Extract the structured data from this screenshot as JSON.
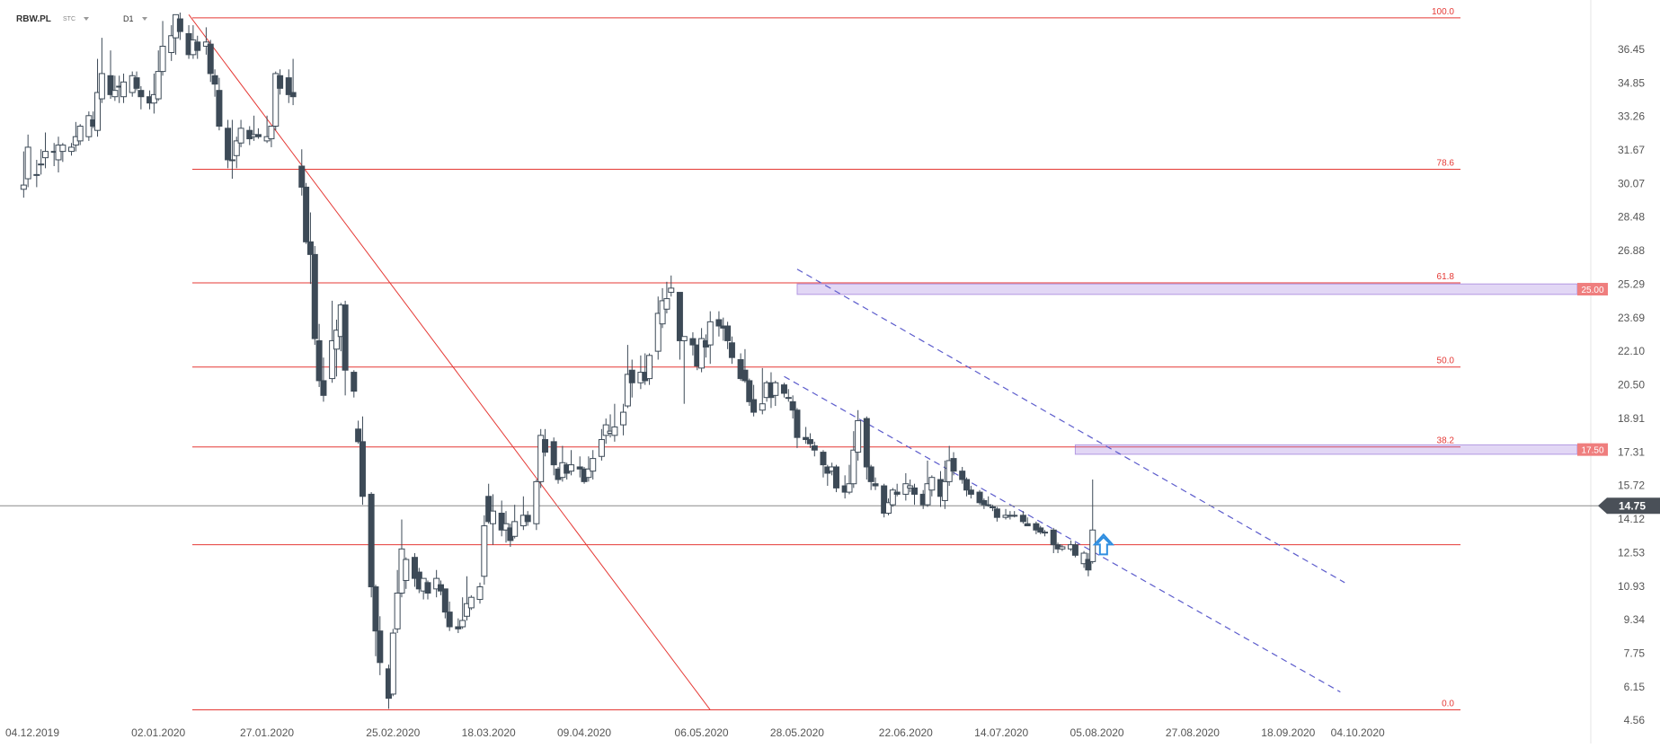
{
  "header": {
    "symbol": "RBW.PL",
    "exchange": "STC",
    "timeframe": "D1"
  },
  "chart_data": {
    "type": "candlestick",
    "title": "",
    "xlabel": "",
    "ylabel": "",
    "ylim": [
      4.56,
      38.5
    ],
    "y_ticks": [
      "36.45",
      "34.85",
      "33.26",
      "31.67",
      "30.07",
      "28.48",
      "26.88",
      "25.29",
      "23.69",
      "22.10",
      "20.50",
      "18.91",
      "17.31",
      "15.72",
      "14.12",
      "12.53",
      "10.93",
      "9.34",
      "7.75",
      "6.15",
      "4.56"
    ],
    "x_ticks": [
      {
        "label": "04.12.2019",
        "day": 0
      },
      {
        "label": "02.01.2020",
        "day": 29
      },
      {
        "label": "27.01.2020",
        "day": 54
      },
      {
        "label": "25.02.2020",
        "day": 83
      },
      {
        "label": "18.03.2020",
        "day": 105
      },
      {
        "label": "09.04.2020",
        "day": 127
      },
      {
        "label": "06.05.2020",
        "day": 154
      },
      {
        "label": "28.05.2020",
        "day": 176
      },
      {
        "label": "22.06.2020",
        "day": 201
      },
      {
        "label": "14.07.2020",
        "day": 223
      },
      {
        "label": "05.08.2020",
        "day": 245
      },
      {
        "label": "27.08.2020",
        "day": 267
      },
      {
        "label": "18.09.2020",
        "day": 289
      },
      {
        "label": "04.10.2020",
        "day": 305
      }
    ],
    "current_price": "14.75",
    "fib_levels": [
      {
        "label": "100.0",
        "value": 37.95
      },
      {
        "label": "78.6",
        "value": 30.75
      },
      {
        "label": "61.8",
        "value": 25.35
      },
      {
        "label": "50.0",
        "value": 21.35
      },
      {
        "label": "38.2",
        "value": 17.55
      },
      {
        "label": "",
        "value": 12.9
      },
      {
        "label": "0.0",
        "value": 5.05
      }
    ],
    "zones": [
      {
        "label": "25.00",
        "y_top": 25.3,
        "y_bottom": 24.8,
        "day_start": 176
      },
      {
        "label": "17.50",
        "y_top": 17.65,
        "y_bottom": 17.2,
        "day_start": 240
      }
    ],
    "trendline": {
      "d1": 36,
      "v1": 38.1,
      "d2": 156,
      "v2": 5.05
    },
    "channel": [
      {
        "d1": 176,
        "v1": 26.0,
        "d2": 302,
        "v2": 11.1
      },
      {
        "d1": 173,
        "v1": 20.9,
        "d2": 301,
        "v2": 5.9
      }
    ],
    "candles": [
      [
        -2,
        29.8,
        30.0,
        31.6,
        29.4
      ],
      [
        -1,
        30.3,
        31.8,
        32.4,
        29.9
      ],
      [
        1,
        30.5,
        30.5,
        31.2,
        29.9
      ],
      [
        2,
        31.0,
        31.0,
        31.7,
        30.5
      ],
      [
        3,
        31.3,
        31.6,
        32.5,
        30.8
      ],
      [
        5,
        31.6,
        31.6,
        32.0,
        30.9
      ],
      [
        6,
        31.2,
        31.9,
        32.3,
        30.6
      ],
      [
        7,
        31.6,
        31.9,
        32.0,
        31.1
      ],
      [
        9,
        31.6,
        31.8,
        32.0,
        31.4
      ],
      [
        10,
        31.9,
        32.3,
        33.0,
        31.6
      ],
      [
        11,
        32.1,
        32.8,
        32.9,
        31.9
      ],
      [
        13,
        32.3,
        33.3,
        33.5,
        32.1
      ],
      [
        14,
        33.1,
        32.8,
        33.5,
        32.7
      ],
      [
        15,
        32.6,
        34.4,
        36.0,
        32.3
      ],
      [
        16,
        34.1,
        35.3,
        37.0,
        33.9
      ],
      [
        18,
        35.2,
        34.3,
        36.4,
        34.1
      ],
      [
        19,
        34.2,
        34.5,
        35.2,
        34.0
      ],
      [
        20,
        34.7,
        34.7,
        35.2,
        33.9
      ],
      [
        21,
        34.2,
        34.9,
        35.3,
        33.9
      ],
      [
        23,
        34.4,
        35.2,
        35.4,
        34.2
      ],
      [
        24,
        35.1,
        34.6,
        35.4,
        34.5
      ],
      [
        25,
        34.5,
        34.2,
        34.7,
        33.6
      ],
      [
        27,
        34.2,
        33.9,
        34.5,
        33.6
      ],
      [
        28,
        33.9,
        34.3,
        35.3,
        33.4
      ],
      [
        29,
        34.1,
        35.4,
        36.4,
        34.0
      ],
      [
        30,
        35.4,
        36.6,
        37.8,
        35.2
      ],
      [
        32,
        36.3,
        37.1,
        37.6,
        35.9
      ],
      [
        33,
        37.0,
        38.1,
        38.1,
        36.2
      ],
      [
        34,
        37.9,
        37.3,
        38.2,
        36.9
      ],
      [
        36,
        37.2,
        36.2,
        37.6,
        36.0
      ],
      [
        37,
        36.2,
        36.9,
        37.6,
        36.0
      ],
      [
        38,
        36.8,
        36.4,
        37.1,
        36.0
      ],
      [
        40,
        36.6,
        36.8,
        37.5,
        36.2
      ],
      [
        41,
        36.7,
        35.3,
        36.9,
        34.9
      ],
      [
        42,
        35.2,
        34.8,
        35.5,
        34.2
      ],
      [
        43,
        34.5,
        32.8,
        35.1,
        32.6
      ],
      [
        45,
        32.7,
        31.2,
        33.1,
        30.8
      ],
      [
        46,
        31.2,
        31.2,
        33.1,
        30.3
      ],
      [
        47,
        31.4,
        32.1,
        32.3,
        30.8
      ],
      [
        48,
        32.0,
        32.7,
        33.1,
        31.8
      ],
      [
        50,
        32.6,
        32.2,
        32.8,
        31.9
      ],
      [
        51,
        32.3,
        32.4,
        33.3,
        32.1
      ],
      [
        52,
        32.4,
        32.3,
        32.7,
        32.2
      ],
      [
        54,
        32.1,
        32.3,
        33.3,
        32.0
      ],
      [
        55,
        32.2,
        32.8,
        32.8,
        31.8
      ],
      [
        56,
        32.8,
        35.3,
        35.4,
        32.6
      ],
      [
        57,
        35.2,
        34.6,
        35.5,
        34.3
      ],
      [
        59,
        35.1,
        34.3,
        35.5,
        33.9
      ],
      [
        60,
        34.4,
        34.2,
        36.0,
        33.8
      ],
      [
        62,
        30.9,
        29.9,
        31.7,
        29.5
      ],
      [
        63,
        29.9,
        27.3,
        30.1,
        27.2
      ],
      [
        64,
        27.3,
        26.7,
        28.7,
        25.3
      ],
      [
        65,
        26.7,
        22.7,
        27.1,
        22.4
      ],
      [
        66,
        22.6,
        20.7,
        23.4,
        20.4
      ],
      [
        67,
        20.7,
        20.0,
        21.8,
        19.7
      ],
      [
        69,
        20.8,
        22.6,
        24.5,
        20.6
      ],
      [
        70,
        22.2,
        23.1,
        23.6,
        20.9
      ],
      [
        71,
        22.8,
        24.3,
        24.4,
        22.1
      ],
      [
        72,
        24.3,
        21.2,
        24.5,
        20.0
      ],
      [
        74,
        21.1,
        20.2,
        21.2,
        19.9
      ],
      [
        75,
        18.4,
        17.8,
        18.8,
        17.7
      ],
      [
        76,
        17.8,
        15.2,
        19.0,
        14.8
      ],
      [
        78,
        15.3,
        10.9,
        15.4,
        10.4
      ],
      [
        79,
        10.9,
        8.8,
        11.0,
        7.6
      ],
      [
        80,
        8.8,
        7.3,
        9.5,
        6.7
      ],
      [
        82,
        7.0,
        5.6,
        7.2,
        5.1
      ],
      [
        83,
        5.8,
        8.7,
        8.9,
        5.7
      ],
      [
        84,
        8.9,
        10.6,
        11.7,
        8.7
      ],
      [
        85,
        10.6,
        12.7,
        14.1,
        10.4
      ],
      [
        86,
        11.2,
        12.2,
        12.3,
        10.8
      ],
      [
        88,
        12.3,
        11.3,
        12.5,
        10.9
      ],
      [
        89,
        11.6,
        10.8,
        11.8,
        10.6
      ],
      [
        90,
        10.7,
        11.3,
        11.3,
        10.3
      ],
      [
        91,
        11.1,
        10.6,
        11.2,
        10.3
      ],
      [
        93,
        10.8,
        11.3,
        11.7,
        10.4
      ],
      [
        94,
        11.0,
        10.7,
        11.2,
        10.5
      ],
      [
        95,
        10.8,
        9.7,
        10.8,
        9.4
      ],
      [
        96,
        9.7,
        9.0,
        10.2,
        8.8
      ],
      [
        98,
        9.0,
        8.9,
        9.4,
        8.7
      ],
      [
        99,
        9.0,
        9.3,
        10.4,
        8.9
      ],
      [
        100,
        9.5,
        10.1,
        11.4,
        9.3
      ],
      [
        101,
        9.9,
        10.4,
        10.5,
        9.8
      ],
      [
        103,
        10.3,
        10.9,
        11.1,
        10.1
      ],
      [
        104,
        11.4,
        13.8,
        14.3,
        11.0
      ],
      [
        105,
        15.2,
        14.0,
        15.8,
        13.9
      ],
      [
        106,
        13.9,
        14.5,
        15.3,
        12.9
      ],
      [
        108,
        14.4,
        13.6,
        15.0,
        13.3
      ],
      [
        109,
        13.6,
        13.9,
        14.5,
        13.0
      ],
      [
        110,
        13.7,
        13.1,
        13.9,
        12.8
      ],
      [
        111,
        13.3,
        14.0,
        14.8,
        13.2
      ],
      [
        113,
        13.8,
        14.3,
        15.2,
        13.6
      ],
      [
        114,
        14.3,
        14.0,
        14.5,
        13.8
      ],
      [
        116,
        13.9,
        15.9,
        16.0,
        13.6
      ],
      [
        117,
        15.9,
        18.1,
        18.4,
        15.6
      ],
      [
        118,
        17.9,
        17.3,
        18.4,
        17.1
      ],
      [
        120,
        17.8,
        16.7,
        18.0,
        16.2
      ],
      [
        121,
        16.5,
        16.0,
        16.6,
        15.8
      ],
      [
        122,
        16.1,
        16.8,
        17.6,
        15.9
      ],
      [
        123,
        16.7,
        16.3,
        16.8,
        16.0
      ],
      [
        124,
        16.4,
        16.7,
        17.4,
        16.2
      ],
      [
        126,
        16.6,
        16.5,
        17.1,
        16.1
      ],
      [
        127,
        16.5,
        15.9,
        16.6,
        15.8
      ],
      [
        128,
        16.1,
        16.5,
        17.1,
        15.9
      ],
      [
        129,
        16.4,
        17.0,
        17.4,
        16.0
      ],
      [
        131,
        17.1,
        17.9,
        18.4,
        16.9
      ],
      [
        132,
        18.1,
        18.6,
        18.9,
        17.7
      ],
      [
        133,
        18.2,
        18.3,
        19.1,
        18.0
      ],
      [
        134,
        18.1,
        18.5,
        19.6,
        17.8
      ],
      [
        136,
        18.6,
        19.2,
        19.6,
        18.1
      ],
      [
        137,
        19.5,
        21.0,
        22.4,
        19.4
      ],
      [
        138,
        21.2,
        20.6,
        21.7,
        19.9
      ],
      [
        140,
        20.6,
        21.1,
        21.9,
        20.3
      ],
      [
        141,
        21.1,
        20.7,
        22.0,
        20.5
      ],
      [
        142,
        20.8,
        21.9,
        22.0,
        20.5
      ],
      [
        144,
        22.1,
        23.9,
        24.7,
        21.7
      ],
      [
        145,
        23.4,
        24.5,
        25.1,
        23.2
      ],
      [
        146,
        24.1,
        24.6,
        25.4,
        23.9
      ],
      [
        147,
        24.9,
        25.1,
        25.7,
        24.7
      ],
      [
        149,
        24.9,
        22.6,
        24.9,
        21.7
      ],
      [
        150,
        22.6,
        22.8,
        22.8,
        19.6
      ],
      [
        152,
        22.7,
        22.4,
        23.0,
        21.9
      ],
      [
        153,
        22.4,
        21.4,
        22.4,
        21.2
      ],
      [
        154,
        21.3,
        22.7,
        23.2,
        21.1
      ],
      [
        155,
        22.6,
        22.3,
        22.9,
        21.8
      ],
      [
        156,
        22.4,
        23.5,
        24.0,
        21.5
      ],
      [
        158,
        23.6,
        23.3,
        24.0,
        22.8
      ],
      [
        159,
        23.3,
        23.2,
        23.7,
        22.6
      ],
      [
        160,
        23.3,
        22.6,
        23.5,
        22.2
      ],
      [
        161,
        22.5,
        21.8,
        22.8,
        21.5
      ],
      [
        163,
        21.7,
        20.8,
        22.0,
        20.7
      ],
      [
        164,
        21.2,
        20.7,
        22.2,
        20.6
      ],
      [
        165,
        20.7,
        19.7,
        20.8,
        19.5
      ],
      [
        166,
        19.8,
        19.2,
        20.5,
        19.0
      ],
      [
        168,
        19.3,
        19.6,
        21.3,
        19.1
      ],
      [
        169,
        19.9,
        20.6,
        20.7,
        19.7
      ],
      [
        170,
        20.6,
        19.9,
        21.1,
        19.4
      ],
      [
        171,
        20.0,
        20.6,
        20.7,
        19.5
      ],
      [
        173,
        20.5,
        20.1,
        20.6,
        19.9
      ],
      [
        174,
        19.9,
        19.9,
        20.3,
        19.7
      ],
      [
        175,
        19.7,
        19.3,
        20.0,
        18.9
      ],
      [
        176,
        19.3,
        18.0,
        19.4,
        17.5
      ],
      [
        178,
        18.0,
        17.9,
        18.5,
        17.7
      ],
      [
        179,
        17.9,
        17.7,
        18.2,
        17.5
      ],
      [
        180,
        17.6,
        17.4,
        17.8,
        17.1
      ],
      [
        182,
        17.3,
        16.7,
        17.4,
        16.1
      ],
      [
        183,
        16.6,
        16.3,
        16.7,
        15.7
      ],
      [
        184,
        16.4,
        16.6,
        16.8,
        16.2
      ],
      [
        185,
        16.6,
        15.6,
        16.7,
        15.4
      ],
      [
        187,
        15.7,
        15.4,
        16.2,
        15.1
      ],
      [
        188,
        15.4,
        15.8,
        16.7,
        15.3
      ],
      [
        189,
        15.8,
        17.4,
        18.3,
        15.6
      ],
      [
        190,
        17.3,
        18.8,
        19.3,
        16.9
      ],
      [
        192,
        18.9,
        16.6,
        19.0,
        16.0
      ],
      [
        193,
        16.6,
        15.9,
        16.7,
        15.5
      ],
      [
        194,
        15.8,
        15.7,
        16.1,
        15.5
      ],
      [
        196,
        15.7,
        14.4,
        15.8,
        14.2
      ],
      [
        197,
        14.4,
        14.9,
        15.1,
        14.3
      ],
      [
        198,
        14.8,
        15.5,
        15.6,
        14.7
      ],
      [
        199,
        15.4,
        15.3,
        15.8,
        15.2
      ],
      [
        201,
        15.3,
        15.8,
        16.3,
        15.0
      ],
      [
        202,
        15.6,
        15.7,
        16.0,
        15.4
      ],
      [
        203,
        15.6,
        15.3,
        15.8,
        14.8
      ],
      [
        205,
        15.3,
        14.8,
        15.5,
        14.6
      ],
      [
        206,
        14.8,
        15.8,
        16.9,
        14.7
      ],
      [
        207,
        15.5,
        16.1,
        16.2,
        15.2
      ],
      [
        209,
        16.0,
        15.2,
        16.4,
        14.7
      ],
      [
        210,
        15.0,
        15.9,
        16.9,
        14.6
      ],
      [
        211,
        15.9,
        16.9,
        17.6,
        15.7
      ],
      [
        212,
        17.0,
        16.4,
        17.3,
        16.2
      ],
      [
        214,
        16.4,
        16.0,
        16.6,
        15.8
      ],
      [
        215,
        16.0,
        15.5,
        16.1,
        15.2
      ],
      [
        216,
        15.5,
        15.3,
        15.7,
        15.1
      ],
      [
        218,
        15.4,
        14.9,
        15.5,
        14.8
      ],
      [
        219,
        15.0,
        14.8,
        15.1,
        14.6
      ],
      [
        220,
        14.8,
        14.8,
        15.2,
        14.7
      ],
      [
        221,
        14.7,
        14.7,
        14.8,
        14.5
      ],
      [
        222,
        14.6,
        14.2,
        14.7,
        14.0
      ],
      [
        224,
        14.2,
        14.3,
        14.6,
        14.1
      ],
      [
        225,
        14.3,
        14.3,
        14.5,
        14.1
      ],
      [
        226,
        14.3,
        14.3,
        14.5,
        14.2
      ],
      [
        228,
        14.3,
        14.0,
        14.5,
        13.9
      ],
      [
        229,
        13.9,
        13.8,
        14.2,
        13.8
      ],
      [
        231,
        13.9,
        13.6,
        14.0,
        13.4
      ],
      [
        232,
        13.7,
        13.5,
        13.8,
        13.4
      ],
      [
        233,
        13.5,
        13.5,
        13.6,
        13.3
      ],
      [
        235,
        13.6,
        12.9,
        13.7,
        12.5
      ],
      [
        236,
        12.9,
        12.7,
        13.0,
        12.5
      ],
      [
        237,
        12.7,
        12.8,
        12.9,
        12.6
      ],
      [
        239,
        12.7,
        12.9,
        13.1,
        12.6
      ],
      [
        240,
        12.9,
        12.4,
        13.0,
        12.3
      ],
      [
        242,
        12.0,
        12.5,
        12.6,
        11.8
      ],
      [
        243,
        12.2,
        11.7,
        12.5,
        11.4
      ],
      [
        244,
        12.1,
        13.6,
        16.0,
        12.0
      ]
    ]
  }
}
